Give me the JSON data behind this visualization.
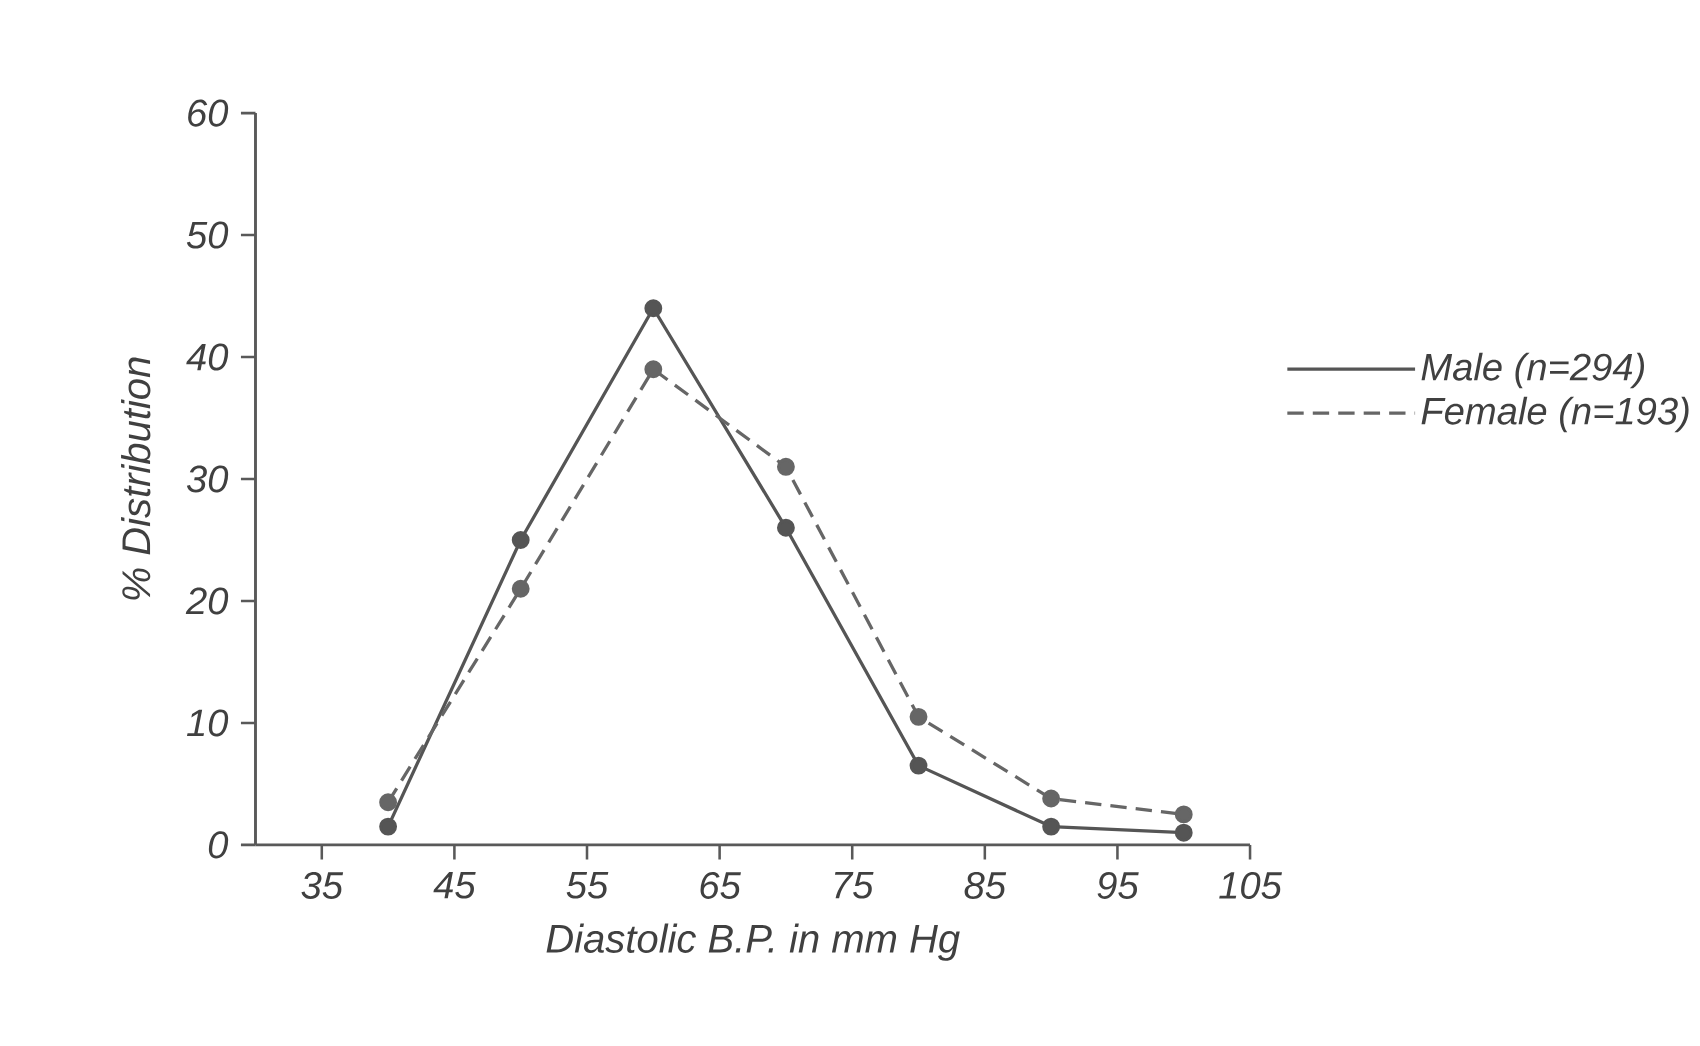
{
  "chart_data": {
    "type": "line",
    "xlabel": "Diastolic B.P. in mm Hg",
    "ylabel": "% Distribution",
    "x": [
      40,
      50,
      60,
      70,
      80,
      90,
      100
    ],
    "series": [
      {
        "name": "Male (n=294)",
        "color": "#555555",
        "line_style": "solid",
        "values": [
          1.5,
          25,
          44,
          26,
          6.5,
          1.5,
          1
        ]
      },
      {
        "name": "Female (n=193)",
        "color": "#666666",
        "line_style": "dashed",
        "values": [
          3.5,
          21,
          39,
          31,
          10.5,
          3.8,
          2.5
        ]
      }
    ],
    "xlim": [
      30,
      105
    ],
    "ylim": [
      0,
      60
    ],
    "xticks": [
      35,
      45,
      55,
      65,
      75,
      85,
      95,
      105
    ],
    "yticks": [
      0,
      10,
      20,
      30,
      40,
      50,
      60
    ],
    "marker": "circle",
    "grid": false,
    "legend": "right"
  }
}
